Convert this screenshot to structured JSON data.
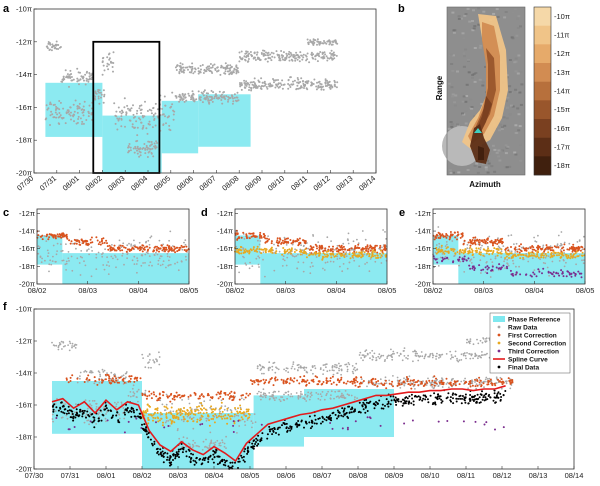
{
  "panel_labels": [
    "a",
    "b",
    "c",
    "d",
    "e",
    "f"
  ],
  "colors": {
    "raw": "#a8a8a8",
    "first": "#d9531e",
    "second": "#e8a820",
    "third": "#7b2d8e",
    "final": "#000000",
    "spline": "#e31a1c",
    "phase_ref": "#7fe8ef",
    "box": "#000000"
  },
  "chart_data": [
    {
      "panel": "a",
      "type": "scatter",
      "y_tick_labels": [
        "-10π",
        "-12π",
        "-14π",
        "-16π",
        "-18π",
        "-20π"
      ],
      "y_ticks": [
        -10,
        -12,
        -14,
        -16,
        -18,
        -20
      ],
      "ylim": [
        -20,
        -10
      ],
      "x_tick_labels": [
        "07/30",
        "07/31",
        "08/01",
        "08/02",
        "08/03",
        "08/04",
        "08/05",
        "08/06",
        "08/07",
        "08/08",
        "08/09",
        "08/10",
        "08/11",
        "08/12",
        "08/13",
        "08/14"
      ],
      "xlim_days": [
        0,
        15
      ],
      "raw_segments": [
        {
          "x0": 0.5,
          "x1": 1.2,
          "mean": -12.3,
          "spread": 0.5
        },
        {
          "x0": 0.5,
          "x1": 2.6,
          "mean": -16.3,
          "spread": 1.2
        },
        {
          "x0": 1.2,
          "x1": 2.6,
          "mean": -14.2,
          "spread": 0.8
        },
        {
          "x0": 2.6,
          "x1": 3.1,
          "mean": -15.2,
          "spread": 0.8
        },
        {
          "x0": 3.0,
          "x1": 3.5,
          "mean": -13.3,
          "spread": 1.2
        },
        {
          "x0": 3.5,
          "x1": 5.4,
          "mean": -16.5,
          "spread": 1.6
        },
        {
          "x0": 4.0,
          "x1": 5.4,
          "mean": -18.5,
          "spread": 0.8
        },
        {
          "x0": 5.4,
          "x1": 6.2,
          "mean": -16.3,
          "spread": 1.8
        },
        {
          "x0": 6.2,
          "x1": 9.0,
          "mean": -15.4,
          "spread": 0.6
        },
        {
          "x0": 6.2,
          "x1": 9.0,
          "mean": -13.7,
          "spread": 0.6
        },
        {
          "x0": 9.0,
          "x1": 13.3,
          "mean": -12.9,
          "spread": 0.6
        },
        {
          "x0": 9.0,
          "x1": 13.3,
          "mean": -14.6,
          "spread": 0.6
        },
        {
          "x0": 12.0,
          "x1": 13.3,
          "mean": -12.0,
          "spread": 0.4
        }
      ],
      "phase_reference": [
        {
          "x0": 0.5,
          "x1": 3.0,
          "y0": -17.8,
          "y1": -14.5
        },
        {
          "x0": 3.0,
          "x1": 5.6,
          "y0": -20.0,
          "y1": -16.5
        },
        {
          "x0": 5.6,
          "x1": 7.2,
          "y0": -18.8,
          "y1": -15.6
        },
        {
          "x0": 7.2,
          "x1": 9.5,
          "y0": -18.4,
          "y1": -15.2
        }
      ],
      "highlight_box": {
        "x0": 2.6,
        "x1": 5.5,
        "y0": -20.0,
        "y1": -12.0
      }
    },
    {
      "panel": "b",
      "type": "heatmap",
      "xlabel": "Azimuth",
      "ylabel": "Range",
      "colorbar_labels": [
        "-10π",
        "-11π",
        "-12π",
        "-13π",
        "-14π",
        "-15π",
        "-16π",
        "-17π",
        "-18π"
      ],
      "colorbar_colors": [
        "#f5d8a8",
        "#f0c488",
        "#e6aa6a",
        "#d28c52",
        "#b7703c",
        "#99562c",
        "#7a4020",
        "#5c2e16",
        "#40200e"
      ]
    },
    {
      "panel": "c",
      "type": "scatter",
      "series": [
        "raw",
        "first"
      ],
      "y_tick_labels": [
        "-12π",
        "-14π",
        "-16π",
        "-18π",
        "-20π"
      ],
      "x_tick_labels": [
        "08/02",
        "08/03",
        "08/04",
        "08/05"
      ],
      "xlim_days": [
        3,
        6
      ],
      "ylim": [
        -20,
        -11.5
      ]
    },
    {
      "panel": "d",
      "type": "scatter",
      "series": [
        "raw",
        "first",
        "second"
      ],
      "y_tick_labels": [
        "-12π",
        "-14π",
        "-16π",
        "-18π",
        "-20π"
      ],
      "x_tick_labels": [
        "08/02",
        "08/03",
        "08/04",
        "08/05"
      ],
      "xlim_days": [
        3,
        6
      ],
      "ylim": [
        -20,
        -11.5
      ]
    },
    {
      "panel": "e",
      "type": "scatter",
      "series": [
        "raw",
        "first",
        "second",
        "third"
      ],
      "y_tick_labels": [
        "-12π",
        "-14π",
        "-16π",
        "-18π",
        "-20π"
      ],
      "x_tick_labels": [
        "08/02",
        "08/03",
        "08/04",
        "08/05"
      ],
      "xlim_days": [
        3,
        6
      ],
      "ylim": [
        -20,
        -11.5
      ]
    },
    {
      "panel": "f",
      "type": "scatter",
      "y_tick_labels": [
        "-10π",
        "-12π",
        "-14π",
        "-16π",
        "-18π",
        "-20π"
      ],
      "y_ticks": [
        -10,
        -12,
        -14,
        -16,
        -18,
        -20
      ],
      "ylim": [
        -20,
        -10
      ],
      "x_tick_labels": [
        "07/30",
        "07/31",
        "08/01",
        "08/02",
        "08/03",
        "08/04",
        "08/05",
        "08/06",
        "08/07",
        "08/08",
        "08/09",
        "08/10",
        "08/11",
        "08/12",
        "08/13",
        "08/14"
      ],
      "xlim_days": [
        0,
        15
      ],
      "legend_position": "top-right",
      "legend": [
        {
          "key": "phase_ref",
          "label": "Phase Reference",
          "marker": "patch"
        },
        {
          "key": "raw",
          "label": "Raw Data",
          "marker": "dot"
        },
        {
          "key": "first",
          "label": "First Correction",
          "marker": "dot"
        },
        {
          "key": "second",
          "label": "Second Correction",
          "marker": "dot"
        },
        {
          "key": "third",
          "label": "Third Correction",
          "marker": "dot"
        },
        {
          "key": "spline",
          "label": "Spline Curve",
          "marker": "line"
        },
        {
          "key": "final",
          "label": "Final Data",
          "marker": "dot"
        }
      ],
      "spline_curve": {
        "x": [
          0.5,
          0.8,
          1.1,
          1.4,
          1.7,
          2.0,
          2.3,
          2.6,
          2.9,
          3.2,
          3.5,
          3.8,
          4.1,
          4.4,
          4.7,
          5.0,
          5.3,
          5.6,
          5.9,
          6.2,
          6.5,
          6.8,
          7.1,
          7.4,
          7.7,
          8.0,
          8.3,
          8.6,
          8.9,
          9.2,
          9.5,
          9.8,
          10.1,
          10.4,
          10.7,
          11.0,
          11.3,
          11.6,
          11.9,
          12.2,
          12.5,
          12.8,
          13.1
        ],
        "y": [
          -15.8,
          -15.6,
          -16.2,
          -15.8,
          -16.5,
          -15.7,
          -16.3,
          -15.8,
          -16.0,
          -17.6,
          -18.5,
          -18.9,
          -18.3,
          -18.8,
          -19.1,
          -18.6,
          -19.0,
          -19.5,
          -18.4,
          -17.8,
          -17.2,
          -17.0,
          -16.8,
          -16.6,
          -16.5,
          -16.3,
          -16.2,
          -16.0,
          -15.8,
          -15.6,
          -15.4,
          -15.4,
          -15.3,
          -15.2,
          -15.2,
          -15.1,
          -15.1,
          -15.0,
          -15.0,
          -15.1,
          -15.0,
          -15.0,
          -14.8
        ]
      },
      "phase_reference": [
        {
          "x0": 0.5,
          "x1": 3.0,
          "y0": -17.8,
          "y1": -14.5
        },
        {
          "x0": 3.0,
          "x1": 6.1,
          "y0": -20.0,
          "y1": -16.5
        },
        {
          "x0": 6.1,
          "x1": 7.5,
          "y0": -18.6,
          "y1": -15.4
        },
        {
          "x0": 7.5,
          "x1": 10.0,
          "y0": -18.0,
          "y1": -15.0
        }
      ]
    }
  ]
}
